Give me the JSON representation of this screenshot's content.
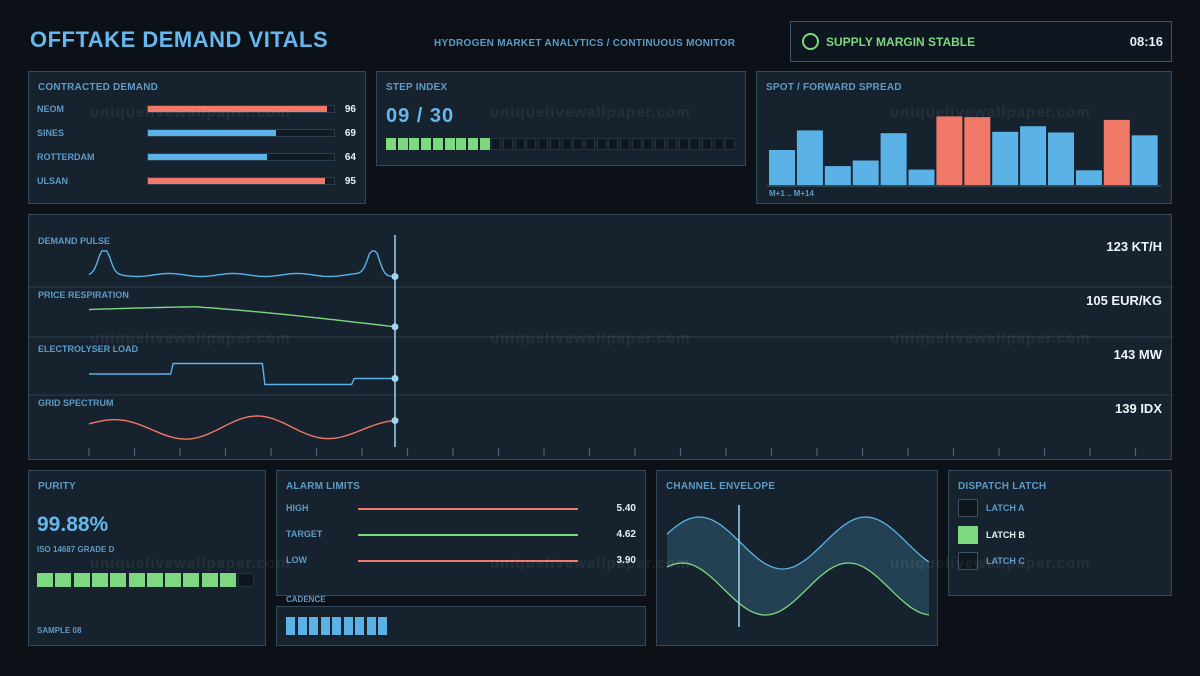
{
  "header": {
    "title": "OFFTAKE DEMAND VITALS",
    "subtitle": "HYDROGEN MARKET ANALYTICS / CONTINUOUS MONITOR",
    "status_text": "SUPPLY MARGIN STABLE",
    "clock": "08:16"
  },
  "colors": {
    "blue": "#5ab2e6",
    "red": "#f07866",
    "green": "#7ed87f",
    "title_blue": "#66b8ec"
  },
  "contracted_demand": {
    "title": "CONTRACTED DEMAND",
    "rows": [
      {
        "name": "NEOM",
        "value": 96,
        "color": "red"
      },
      {
        "name": "SINES",
        "value": 69,
        "color": "blue"
      },
      {
        "name": "ROTTERDAM",
        "value": 64,
        "color": "blue"
      },
      {
        "name": "ULSAN",
        "value": 95,
        "color": "red"
      }
    ]
  },
  "step_index": {
    "title": "STEP INDEX",
    "display": "09 / 30",
    "current": 9,
    "total": 30
  },
  "spread": {
    "title": "SPOT / FORWARD SPREAD",
    "axis_label": "M+1 .. M+14",
    "bars": [
      {
        "v": 0.5,
        "c": "blue"
      },
      {
        "v": 0.78,
        "c": "blue"
      },
      {
        "v": 0.27,
        "c": "blue"
      },
      {
        "v": 0.35,
        "c": "blue"
      },
      {
        "v": 0.74,
        "c": "blue"
      },
      {
        "v": 0.22,
        "c": "blue"
      },
      {
        "v": 0.98,
        "c": "red"
      },
      {
        "v": 0.97,
        "c": "red"
      },
      {
        "v": 0.76,
        "c": "blue"
      },
      {
        "v": 0.84,
        "c": "blue"
      },
      {
        "v": 0.75,
        "c": "blue"
      },
      {
        "v": 0.21,
        "c": "blue"
      },
      {
        "v": 0.93,
        "c": "red"
      },
      {
        "v": 0.71,
        "c": "blue"
      }
    ]
  },
  "traces": [
    {
      "label": "DEMAND PULSE",
      "reading": "123 KT/H",
      "color": "blue"
    },
    {
      "label": "PRICE RESPIRATION",
      "reading": "105 EUR/KG",
      "color": "green"
    },
    {
      "label": "ELECTROLYSER LOAD",
      "reading": "143 MW",
      "color": "blue"
    },
    {
      "label": "GRID SPECTRUM",
      "reading": "139 IDX",
      "color": "red"
    }
  ],
  "purity": {
    "title": "PURITY",
    "value": "99.88%",
    "standard": "ISO 14687 GRADE D",
    "filled_cells": 11,
    "total_cells": 12,
    "sample": "SAMPLE 08"
  },
  "alarm_limits": {
    "title": "ALARM LIMITS",
    "rows": [
      {
        "name": "HIGH",
        "value": "5.40",
        "color": "red"
      },
      {
        "name": "TARGET",
        "value": "4.62",
        "color": "green"
      },
      {
        "name": "LOW",
        "value": "3.90",
        "color": "red"
      }
    ]
  },
  "cadence": {
    "title": "CADENCE",
    "cells": 9
  },
  "envelope": {
    "title": "CHANNEL ENVELOPE"
  },
  "dispatch_latch": {
    "title": "DISPATCH LATCH",
    "items": [
      {
        "label": "LATCH A",
        "active": false
      },
      {
        "label": "LATCH B",
        "active": true
      },
      {
        "label": "LATCH C",
        "active": false
      }
    ]
  }
}
